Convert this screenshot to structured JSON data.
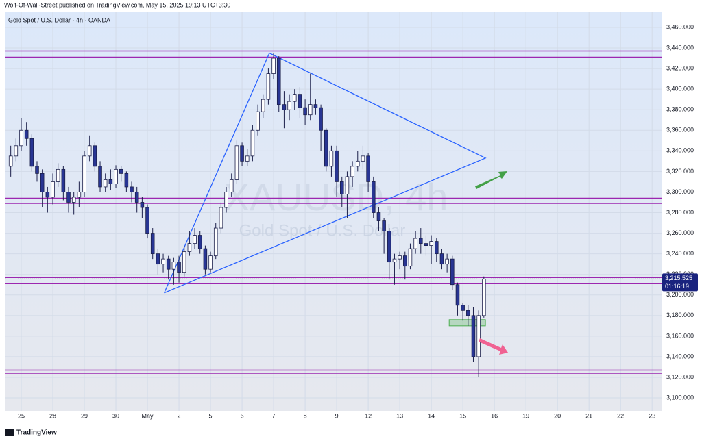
{
  "header": {
    "publisher": "Wolf-Of-Wall-Street published on TradingView.com, May 15, 2025 19:13 UTC+3:30"
  },
  "footer": {
    "brand": "TradingView"
  },
  "chart_data": {
    "type": "candlestick",
    "title": "Gold Spot / U.S. Dollar · 4h · OANDA",
    "watermark": "XAUUSD, 4h",
    "watermark_subtitle": "Gold Spot / U.S. Dollar",
    "up_color": "#ffffff",
    "down_color": "#283593",
    "outline_color": "#1b1f4a",
    "x": [
      -2,
      -1,
      0,
      1,
      2,
      3,
      4,
      5,
      6,
      7,
      8,
      9,
      10,
      11,
      12,
      13,
      14,
      15,
      16,
      17,
      18,
      19,
      20,
      21,
      22,
      23,
      24,
      25,
      26,
      27,
      28,
      29,
      30,
      31,
      32,
      33,
      34,
      35,
      36,
      37,
      38,
      39,
      40,
      41,
      42,
      43,
      44,
      45,
      46,
      47,
      48,
      49,
      50,
      51,
      52,
      53,
      54,
      55,
      56,
      57,
      58,
      59,
      60,
      61,
      62,
      63,
      64,
      65,
      66,
      67,
      68,
      69,
      70,
      71,
      72,
      73,
      74,
      75,
      76,
      77,
      78,
      79,
      80,
      81,
      82,
      83,
      84,
      85,
      86,
      87,
      88
    ],
    "open": [
      3325,
      3335,
      3345,
      3360,
      3352,
      3325,
      3318,
      3300,
      3295,
      3310,
      3322,
      3300,
      3290,
      3295,
      3300,
      3335,
      3345,
      3325,
      3305,
      3312,
      3308,
      3322,
      3318,
      3305,
      3300,
      3290,
      3285,
      3260,
      3240,
      3230,
      3235,
      3225,
      3232,
      3222,
      3242,
      3250,
      3258,
      3245,
      3225,
      3238,
      3265,
      3285,
      3300,
      3312,
      3345,
      3330,
      3335,
      3360,
      3378,
      3390,
      3415,
      3430,
      3385,
      3380,
      3388,
      3395,
      3382,
      3375,
      3385,
      3382,
      3360,
      3325,
      3340,
      3310,
      3298,
      3315,
      3325,
      3330,
      3335,
      3310,
      3280,
      3272,
      3262,
      3232,
      3235,
      3238,
      3228,
      3245,
      3255,
      3250,
      3248,
      3252,
      3240,
      3230,
      3235,
      3210,
      3190,
      3185,
      3180,
      3140,
      3180
    ],
    "high": [
      3345,
      3352,
      3372,
      3368,
      3356,
      3330,
      3322,
      3305,
      3318,
      3328,
      3325,
      3305,
      3300,
      3310,
      3340,
      3355,
      3348,
      3330,
      3318,
      3322,
      3326,
      3325,
      3320,
      3310,
      3305,
      3295,
      3288,
      3265,
      3245,
      3240,
      3238,
      3236,
      3238,
      3248,
      3262,
      3265,
      3262,
      3248,
      3242,
      3270,
      3290,
      3305,
      3318,
      3350,
      3348,
      3342,
      3365,
      3385,
      3395,
      3420,
      3435,
      3432,
      3398,
      3395,
      3400,
      3402,
      3390,
      3415,
      3390,
      3385,
      3362,
      3345,
      3345,
      3315,
      3320,
      3330,
      3340,
      3345,
      3338,
      3315,
      3285,
      3275,
      3265,
      3240,
      3242,
      3242,
      3250,
      3262,
      3265,
      3258,
      3258,
      3255,
      3245,
      3240,
      3238,
      3212,
      3192,
      3190,
      3188,
      3185,
      3218
    ],
    "low": [
      3315,
      3330,
      3340,
      3345,
      3320,
      3310,
      3285,
      3280,
      3288,
      3305,
      3292,
      3280,
      3278,
      3285,
      3295,
      3330,
      3320,
      3300,
      3300,
      3302,
      3304,
      3310,
      3300,
      3290,
      3280,
      3275,
      3255,
      3235,
      3220,
      3222,
      3215,
      3210,
      3212,
      3218,
      3238,
      3245,
      3240,
      3220,
      3222,
      3235,
      3260,
      3280,
      3295,
      3308,
      3325,
      3325,
      3330,
      3355,
      3372,
      3385,
      3410,
      3378,
      3362,
      3370,
      3380,
      3372,
      3365,
      3370,
      3375,
      3340,
      3320,
      3315,
      3295,
      3285,
      3275,
      3305,
      3320,
      3322,
      3300,
      3275,
      3262,
      3240,
      3215,
      3210,
      3225,
      3215,
      3225,
      3240,
      3240,
      3238,
      3230,
      3232,
      3225,
      3222,
      3205,
      3180,
      3175,
      3170,
      3135,
      3120,
      3178
    ],
    "close": [
      3335,
      3345,
      3360,
      3352,
      3325,
      3318,
      3300,
      3295,
      3310,
      3322,
      3300,
      3290,
      3295,
      3300,
      3335,
      3345,
      3325,
      3305,
      3312,
      3308,
      3322,
      3318,
      3305,
      3300,
      3290,
      3285,
      3260,
      3240,
      3230,
      3235,
      3225,
      3232,
      3222,
      3242,
      3250,
      3258,
      3245,
      3225,
      3238,
      3265,
      3285,
      3300,
      3312,
      3345,
      3330,
      3335,
      3360,
      3378,
      3390,
      3415,
      3430,
      3385,
      3380,
      3388,
      3395,
      3382,
      3375,
      3385,
      3382,
      3360,
      3325,
      3340,
      3310,
      3298,
      3315,
      3325,
      3330,
      3335,
      3310,
      3280,
      3272,
      3262,
      3232,
      3235,
      3238,
      3228,
      3245,
      3255,
      3250,
      3248,
      3252,
      3240,
      3230,
      3235,
      3210,
      3190,
      3185,
      3180,
      3140,
      3180,
      3215.525
    ],
    "last_price": {
      "value": 3215.525,
      "label": "3,215.525"
    },
    "countdown": "01:16:19",
    "levels": [
      [
        3431,
        3437
      ],
      [
        3289,
        3294
      ],
      [
        3211,
        3217
      ],
      [
        3124,
        3127
      ]
    ],
    "level_color": "#9c27b0",
    "triangle": {
      "x": [
        27.2,
        47.2,
        88.3,
        27.2
      ],
      "y": [
        3202,
        3435,
        3333,
        3202
      ],
      "color": "#2962ff"
    },
    "zone": {
      "x": [
        81.4,
        88.3
      ],
      "y": [
        3170,
        3176
      ],
      "color": "#4caf50"
    },
    "xlim": [
      -3,
      121.8
    ],
    "xticks": [
      {
        "value": 0,
        "label": "25"
      },
      {
        "value": 6,
        "label": "28"
      },
      {
        "value": 12,
        "label": "29"
      },
      {
        "value": 18,
        "label": "30"
      },
      {
        "value": 24,
        "label": "May"
      },
      {
        "value": 30,
        "label": "2"
      },
      {
        "value": 36,
        "label": "5"
      },
      {
        "value": 42,
        "label": "6"
      },
      {
        "value": 48,
        "label": "7"
      },
      {
        "value": 54,
        "label": "8"
      },
      {
        "value": 60,
        "label": "9"
      },
      {
        "value": 66,
        "label": "12"
      },
      {
        "value": 72,
        "label": "13"
      },
      {
        "value": 78,
        "label": "14"
      },
      {
        "value": 84,
        "label": "15"
      },
      {
        "value": 90,
        "label": "16"
      },
      {
        "value": 96,
        "label": "19"
      },
      {
        "value": 102,
        "label": "20"
      },
      {
        "value": 108,
        "label": "21"
      },
      {
        "value": 114,
        "label": "22"
      },
      {
        "value": 120,
        "label": "23"
      }
    ],
    "ylim": [
      3087.4,
      3474.6
    ],
    "yticks": [
      {
        "value": 3100,
        "label": "3,100.000"
      },
      {
        "value": 3120,
        "label": "3,120.000"
      },
      {
        "value": 3140,
        "label": "3,140.000"
      },
      {
        "value": 3160,
        "label": "3,160.000"
      },
      {
        "value": 3180,
        "label": "3,180.000"
      },
      {
        "value": 3200,
        "label": "3,200.000"
      },
      {
        "value": 3220,
        "label": "3,220.000"
      },
      {
        "value": 3240,
        "label": "3,240.000"
      },
      {
        "value": 3260,
        "label": "3,260.000"
      },
      {
        "value": 3280,
        "label": "3,280.000"
      },
      {
        "value": 3300,
        "label": "3,300.000"
      },
      {
        "value": 3320,
        "label": "3,320.000"
      },
      {
        "value": 3340,
        "label": "3,340.000"
      },
      {
        "value": 3360,
        "label": "3,360.000"
      },
      {
        "value": 3380,
        "label": "3,380.000"
      },
      {
        "value": 3400,
        "label": "3,400.000"
      },
      {
        "value": 3420,
        "label": "3,420.000"
      },
      {
        "value": 3440,
        "label": "3,440.000"
      },
      {
        "value": 3460,
        "label": "3,460.000"
      }
    ]
  }
}
